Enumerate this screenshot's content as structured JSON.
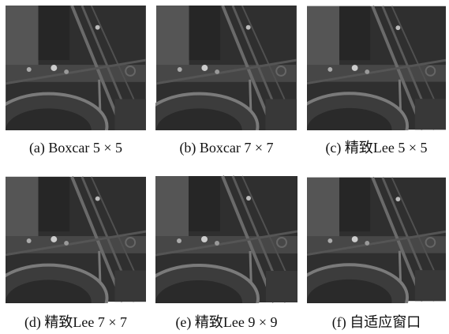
{
  "panels": [
    {
      "caption": "(a) Boxcar 5 × 5"
    },
    {
      "caption": "(b) Boxcar 7 × 7"
    },
    {
      "caption": "(c) 精致Lee 5 × 5"
    },
    {
      "caption": "(d) 精致Lee 7 × 7"
    },
    {
      "caption": "(e) 精致Lee 9 × 9"
    },
    {
      "caption": "(f) 自适应窗口"
    }
  ]
}
